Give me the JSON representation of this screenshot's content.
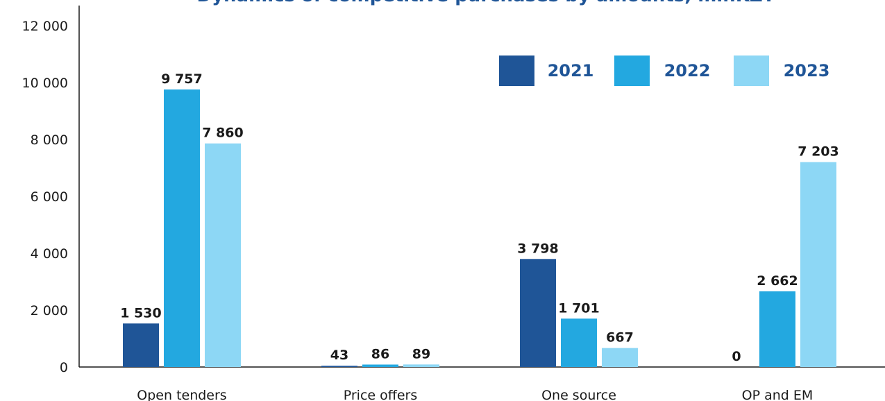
{
  "chart_data": {
    "type": "bar",
    "title": "Dynamics of competitive purchases by amounts, mlnKZT",
    "categories": [
      "Open tenders",
      "Price offers",
      "One source",
      "OP and EM"
    ],
    "series": [
      {
        "name": "2021",
        "color": "#1f5597",
        "values": [
          1530,
          43,
          3798,
          0
        ],
        "labels": [
          "1 530",
          "43",
          "3 798",
          "0"
        ]
      },
      {
        "name": "2022",
        "color": "#23a8e0",
        "values": [
          9757,
          86,
          1701,
          2662
        ],
        "labels": [
          "9 757",
          "86",
          "1 701",
          "2 662"
        ]
      },
      {
        "name": "2023",
        "color": "#8dd7f5",
        "values": [
          7860,
          89,
          667,
          7203
        ],
        "labels": [
          "7 860",
          "89",
          "667",
          "7 203"
        ]
      }
    ],
    "yticks": [
      "0",
      "2 000",
      "4 000",
      "6 000",
      "8 000",
      "10 000",
      "12 000"
    ],
    "ylim": [
      0,
      12000
    ],
    "xlabel": "",
    "ylabel": "",
    "grid": false,
    "legend_position": "top-right",
    "title_color": "#1f5597",
    "axis_color": "#1a1a1a"
  }
}
